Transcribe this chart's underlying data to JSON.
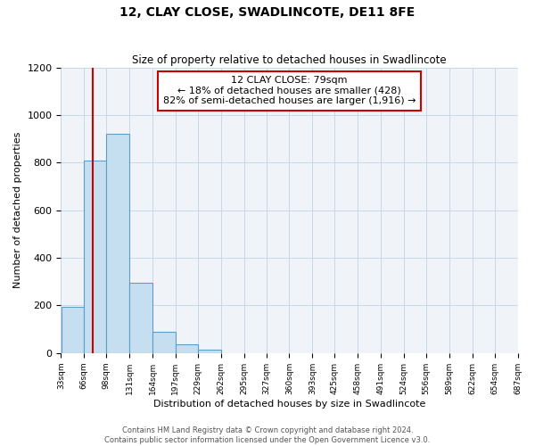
{
  "title": "12, CLAY CLOSE, SWADLINCOTE, DE11 8FE",
  "subtitle": "Size of property relative to detached houses in Swadlincote",
  "xlabel": "Distribution of detached houses by size in Swadlincote",
  "ylabel": "Number of detached properties",
  "bin_edges": [
    33,
    66,
    98,
    131,
    164,
    197,
    229,
    262,
    295,
    327,
    360,
    393,
    425,
    458,
    491,
    524,
    556,
    589,
    622,
    654,
    687
  ],
  "bar_heights": [
    196,
    810,
    921,
    295,
    88,
    38,
    15,
    0,
    0,
    0,
    0,
    0,
    0,
    0,
    0,
    0,
    0,
    0,
    0,
    0
  ],
  "bar_color": "#c5dff0",
  "bar_edge_color": "#5b9ec9",
  "property_line_x": 79,
  "property_line_color": "#cc0000",
  "annotation_line1": "12 CLAY CLOSE: 79sqm",
  "annotation_line2": "← 18% of detached houses are smaller (428)",
  "annotation_line3": "82% of semi-detached houses are larger (1,916) →",
  "annotation_box_color": "#cc0000",
  "ylim": [
    0,
    1200
  ],
  "yticks": [
    0,
    200,
    400,
    600,
    800,
    1000,
    1200
  ],
  "tick_labels": [
    "33sqm",
    "66sqm",
    "98sqm",
    "131sqm",
    "164sqm",
    "197sqm",
    "229sqm",
    "262sqm",
    "295sqm",
    "327sqm",
    "360sqm",
    "393sqm",
    "425sqm",
    "458sqm",
    "491sqm",
    "524sqm",
    "556sqm",
    "589sqm",
    "622sqm",
    "654sqm",
    "687sqm"
  ],
  "footer_line1": "Contains HM Land Registry data © Crown copyright and database right 2024.",
  "footer_line2": "Contains public sector information licensed under the Open Government Licence v3.0.",
  "background_color": "#ffffff",
  "plot_bg_color": "#f0f4f8",
  "grid_color": "#c8d8e8"
}
